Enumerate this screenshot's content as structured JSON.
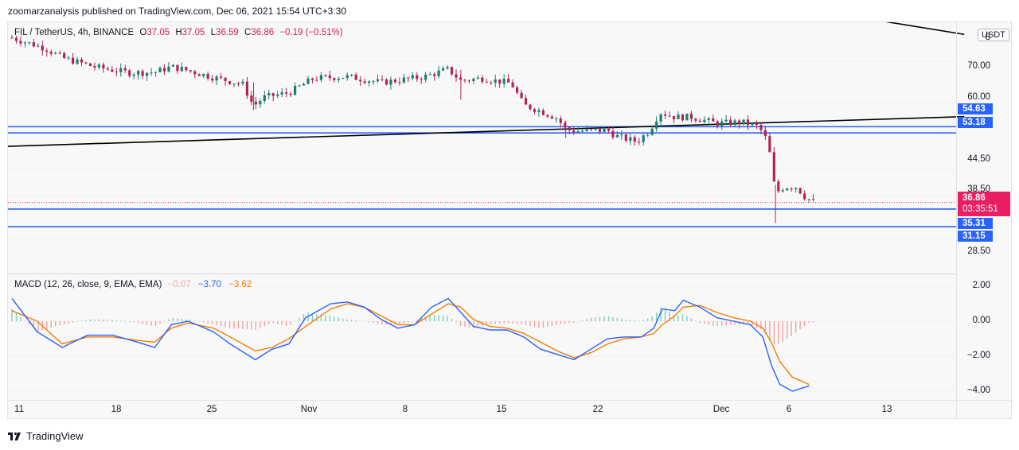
{
  "header": {
    "published": "zoomarzanalysis published on TradingView.com, Dec 06, 2021 15:54 UTC+3:30"
  },
  "legend": {
    "symbol": "FIL / TetherUS, 4h, BINANCE",
    "open_label": "O",
    "open": "37.05",
    "high_label": "H",
    "high": "37.05",
    "low_label": "L",
    "low": "36.59",
    "close_label": "C",
    "close": "36.86",
    "change": "−0.19 (−0.51%)"
  },
  "currency_button": "USDT",
  "price_axis": [
    "8",
    "70.00",
    "60.00",
    "44.50",
    "38.50",
    "28.50"
  ],
  "macd_axis": [
    "2.00",
    "0.00",
    "−2.00",
    "−4.00"
  ],
  "time_axis": [
    "11",
    "18",
    "25",
    "Nov",
    "8",
    "15",
    "22",
    "Dec",
    "6",
    "13"
  ],
  "price_tags": {
    "level1": "54.63",
    "level2": "53.18",
    "last_price": "36.86",
    "countdown": "03:35:51",
    "level3": "35.31",
    "level4": "31.15"
  },
  "macd_legend": {
    "label": "MACD (12, 26, close, 9, EMA, EMA)",
    "histogram": "−0.07",
    "macd": "−3.70",
    "signal": "−3.62"
  },
  "footer": {
    "brand": "TradingView"
  },
  "colors": {
    "up": "#26a69a",
    "down": "#ef5350",
    "candle_up": "#1b7d6e",
    "candle_down": "#b0245b",
    "level_line": "#2962ff",
    "trend_line": "#000000",
    "macd_line": "#2962ff",
    "signal_line": "#f57c00",
    "last_price": "#e91e63"
  },
  "chart_data": [
    {
      "type": "candlestick",
      "title": "FIL / TetherUS, 4h, BINANCE",
      "x_labels": [
        "11",
        "18",
        "25",
        "Nov",
        "8",
        "15",
        "22",
        "Dec",
        "6",
        "13"
      ],
      "ylim": [
        24,
        82
      ],
      "close_path": [
        {
          "t": 0,
          "c": 75.5
        },
        {
          "t": 4,
          "c": 73.0
        },
        {
          "t": 6,
          "c": 70.8
        },
        {
          "t": 10,
          "c": 68.6
        },
        {
          "t": 14,
          "c": 67.3
        },
        {
          "t": 17,
          "c": 67.4
        },
        {
          "t": 19,
          "c": 68.7
        },
        {
          "t": 21,
          "c": 67.8
        },
        {
          "t": 24,
          "c": 66.2
        },
        {
          "t": 27.5,
          "c": 64.6
        },
        {
          "t": 28.8,
          "c": 59.5
        },
        {
          "t": 30,
          "c": 61.5
        },
        {
          "t": 33,
          "c": 62.6
        },
        {
          "t": 36,
          "c": 66.0
        },
        {
          "t": 40,
          "c": 66.4
        },
        {
          "t": 44,
          "c": 65.0
        },
        {
          "t": 49,
          "c": 66.3
        },
        {
          "t": 52,
          "c": 68.1
        },
        {
          "t": 53.5,
          "c": 65.4
        },
        {
          "t": 56,
          "c": 66.0
        },
        {
          "t": 59.5,
          "c": 64.8
        },
        {
          "t": 61,
          "c": 59.7
        },
        {
          "t": 63,
          "c": 58.3
        },
        {
          "t": 65,
          "c": 56.6
        },
        {
          "t": 66,
          "c": 54.0
        },
        {
          "t": 67,
          "c": 53.6
        },
        {
          "t": 71,
          "c": 53.8
        },
        {
          "t": 72,
          "c": 52.4
        },
        {
          "t": 74.5,
          "c": 51.1
        },
        {
          "t": 76,
          "c": 53.8
        },
        {
          "t": 77.2,
          "c": 58.0
        },
        {
          "t": 79,
          "c": 56.9
        },
        {
          "t": 81,
          "c": 56.9
        },
        {
          "t": 84,
          "c": 55.4
        },
        {
          "t": 87,
          "c": 55.7
        },
        {
          "t": 89,
          "c": 54.6
        },
        {
          "t": 89.8,
          "c": 52.0
        },
        {
          "t": 90.3,
          "c": 48.5
        },
        {
          "t": 91,
          "c": 39.0
        },
        {
          "t": 92,
          "c": 40.5
        },
        {
          "t": 93.5,
          "c": 40.5
        },
        {
          "t": 94.5,
          "c": 38.2
        },
        {
          "t": 95.5,
          "c": 37.0
        }
      ],
      "candles_drawn": 185,
      "horizontal_levels": [
        54.63,
        53.18,
        35.31,
        31.15
      ],
      "last_price": 36.86,
      "trend_lines": [
        {
          "from": {
            "t": -1,
            "price": 50.0
          },
          "to": {
            "t": 113.5,
            "price": 57.0
          }
        },
        {
          "from": {
            "t": 70.5,
            "price": 90.0
          },
          "to": {
            "t": 113.5,
            "price": 76.3
          }
        }
      ],
      "x_tick_t": {
        "11": 1,
        "18": 12.5,
        "25": 24,
        "Nov": 36.5,
        "8": 47.5,
        "15": 59,
        "22": 70.5,
        "Dec": 85.5,
        "6": 94.3,
        "13": 105.8
      }
    },
    {
      "type": "line+bar",
      "title": "MACD (12, 26, close, 9, EMA, EMA)",
      "ylim": [
        -4.7,
        2.3
      ],
      "series": [
        {
          "name": "MACD",
          "points": [
            {
              "t": 0,
              "v": 1.3
            },
            {
              "t": 3,
              "v": -0.6
            },
            {
              "t": 6,
              "v": -1.5
            },
            {
              "t": 9,
              "v": -0.8
            },
            {
              "t": 12,
              "v": -0.8
            },
            {
              "t": 15,
              "v": -1.2
            },
            {
              "t": 17,
              "v": -1.5
            },
            {
              "t": 19,
              "v": -0.2
            },
            {
              "t": 21,
              "v": 0.0
            },
            {
              "t": 24,
              "v": -0.6
            },
            {
              "t": 26,
              "v": -1.3
            },
            {
              "t": 29,
              "v": -2.2
            },
            {
              "t": 31,
              "v": -1.6
            },
            {
              "t": 33,
              "v": -1.3
            },
            {
              "t": 35,
              "v": 0.2
            },
            {
              "t": 38,
              "v": 1.0
            },
            {
              "t": 40,
              "v": 1.1
            },
            {
              "t": 42,
              "v": 0.8
            },
            {
              "t": 44,
              "v": 0.1
            },
            {
              "t": 46,
              "v": -0.4
            },
            {
              "t": 48,
              "v": -0.2
            },
            {
              "t": 50,
              "v": 0.8
            },
            {
              "t": 52,
              "v": 1.3
            },
            {
              "t": 53.5,
              "v": 0.5
            },
            {
              "t": 55,
              "v": -0.3
            },
            {
              "t": 57,
              "v": -0.5
            },
            {
              "t": 59,
              "v": -0.5
            },
            {
              "t": 61,
              "v": -0.9
            },
            {
              "t": 63,
              "v": -1.6
            },
            {
              "t": 65,
              "v": -1.9
            },
            {
              "t": 67,
              "v": -2.2
            },
            {
              "t": 69,
              "v": -1.6
            },
            {
              "t": 71,
              "v": -1.0
            },
            {
              "t": 73,
              "v": -0.9
            },
            {
              "t": 75,
              "v": -0.9
            },
            {
              "t": 76.5,
              "v": -0.4
            },
            {
              "t": 77.5,
              "v": 0.7
            },
            {
              "t": 79,
              "v": 0.6
            },
            {
              "t": 80,
              "v": 1.2
            },
            {
              "t": 82,
              "v": 0.8
            },
            {
              "t": 84,
              "v": 0.2
            },
            {
              "t": 86,
              "v": 0.0
            },
            {
              "t": 88,
              "v": -0.2
            },
            {
              "t": 89.5,
              "v": -0.9
            },
            {
              "t": 90.5,
              "v": -2.5
            },
            {
              "t": 91.5,
              "v": -3.6
            },
            {
              "t": 93,
              "v": -4.0
            },
            {
              "t": 95,
              "v": -3.7
            }
          ]
        },
        {
          "name": "Signal",
          "points": [
            {
              "t": 0,
              "v": 0.6
            },
            {
              "t": 3,
              "v": 0.0
            },
            {
              "t": 6,
              "v": -1.3
            },
            {
              "t": 9,
              "v": -0.9
            },
            {
              "t": 12,
              "v": -0.9
            },
            {
              "t": 15,
              "v": -1.1
            },
            {
              "t": 17,
              "v": -1.2
            },
            {
              "t": 19,
              "v": -0.4
            },
            {
              "t": 21,
              "v": -0.1
            },
            {
              "t": 24,
              "v": -0.4
            },
            {
              "t": 26,
              "v": -0.9
            },
            {
              "t": 29,
              "v": -1.7
            },
            {
              "t": 31,
              "v": -1.5
            },
            {
              "t": 33,
              "v": -1.0
            },
            {
              "t": 35,
              "v": -0.3
            },
            {
              "t": 38,
              "v": 0.7
            },
            {
              "t": 40,
              "v": 1.0
            },
            {
              "t": 42,
              "v": 0.8
            },
            {
              "t": 44,
              "v": 0.3
            },
            {
              "t": 46,
              "v": -0.2
            },
            {
              "t": 48,
              "v": -0.2
            },
            {
              "t": 50,
              "v": 0.4
            },
            {
              "t": 52,
              "v": 1.0
            },
            {
              "t": 53.5,
              "v": 0.8
            },
            {
              "t": 55,
              "v": 0.1
            },
            {
              "t": 57,
              "v": -0.3
            },
            {
              "t": 59,
              "v": -0.4
            },
            {
              "t": 61,
              "v": -0.7
            },
            {
              "t": 63,
              "v": -1.2
            },
            {
              "t": 65,
              "v": -1.7
            },
            {
              "t": 67,
              "v": -2.1
            },
            {
              "t": 69,
              "v": -1.8
            },
            {
              "t": 71,
              "v": -1.3
            },
            {
              "t": 73,
              "v": -1.0
            },
            {
              "t": 75,
              "v": -0.9
            },
            {
              "t": 76.5,
              "v": -0.7
            },
            {
              "t": 77.5,
              "v": -0.2
            },
            {
              "t": 79,
              "v": 0.3
            },
            {
              "t": 80,
              "v": 0.8
            },
            {
              "t": 82,
              "v": 0.9
            },
            {
              "t": 84,
              "v": 0.5
            },
            {
              "t": 86,
              "v": 0.2
            },
            {
              "t": 88,
              "v": 0.0
            },
            {
              "t": 89.5,
              "v": -0.4
            },
            {
              "t": 90.5,
              "v": -1.2
            },
            {
              "t": 91.5,
              "v": -2.3
            },
            {
              "t": 93,
              "v": -3.2
            },
            {
              "t": 95,
              "v": -3.62
            }
          ]
        }
      ],
      "histogram": "MACD − Signal, sampled per candle"
    }
  ]
}
